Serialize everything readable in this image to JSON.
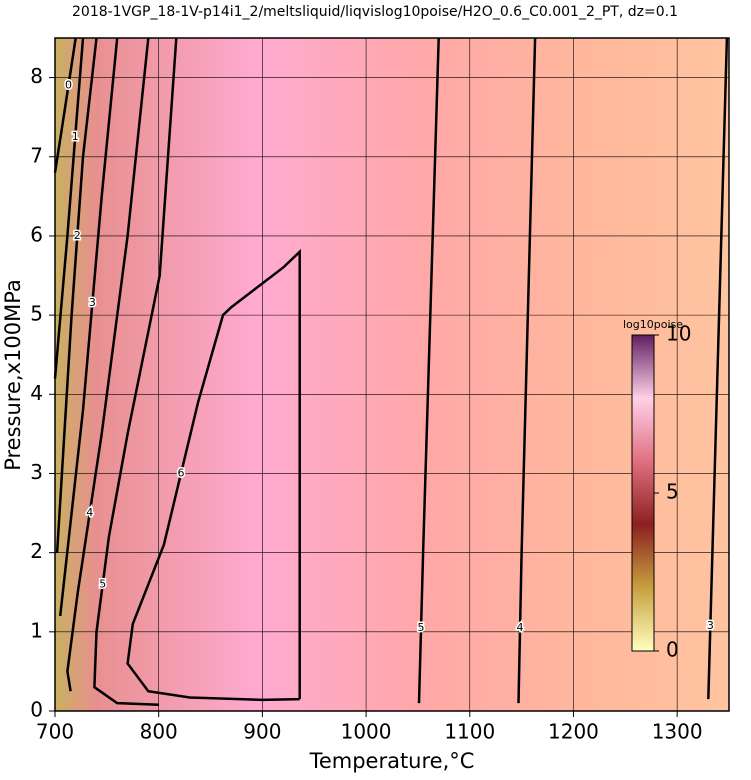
{
  "chart_data": {
    "type": "contour",
    "title": "2018-1VGP_18-1V-p14i1_2/meltsliquid/liqvislog10poise/H2O_0.6_C0.001_2_PT, dz=0.1",
    "x_label": "Temperature,°C",
    "y_label": "Pressure,x100MPa",
    "xlim": [
      700,
      1350
    ],
    "ylim": [
      0,
      8.5
    ],
    "xticks": [
      700,
      800,
      900,
      1000,
      1100,
      1200,
      1300
    ],
    "yticks": [
      0,
      1,
      2,
      3,
      4,
      5,
      6,
      7,
      8
    ],
    "grid": true,
    "line_color": "#000000",
    "contours": [
      {
        "level": 0,
        "x": [
          720,
          706,
          700
        ],
        "y": [
          8.5,
          7.3,
          6.8
        ]
      },
      {
        "level": 1,
        "x": [
          727,
          712,
          700
        ],
        "y": [
          8.5,
          6.0,
          4.2
        ]
      },
      {
        "level": 2,
        "x": [
          740,
          727,
          716,
          702
        ],
        "y": [
          8.5,
          7.0,
          5.0,
          2.0
        ]
      },
      {
        "level": 3,
        "x": [
          760,
          745,
          727,
          705
        ],
        "y": [
          8.5,
          6.5,
          3.8,
          1.2
        ]
      },
      {
        "level": 4,
        "x": [
          790,
          770,
          745,
          722,
          712,
          715
        ],
        "y": [
          8.5,
          6.0,
          3.5,
          1.5,
          0.5,
          0.25
        ]
      },
      {
        "level": 5,
        "x": [
          817,
          801,
          770,
          752,
          740,
          738,
          760,
          800
        ],
        "y": [
          8.5,
          5.5,
          3.5,
          2.2,
          1.0,
          0.3,
          0.1,
          0.08
        ]
      },
      {
        "level": 6,
        "x": [
          936,
          936,
          920,
          870,
          862,
          838,
          805,
          775,
          770,
          790,
          830,
          900,
          936
        ],
        "y": [
          0.15,
          5.8,
          5.6,
          5.1,
          5.0,
          3.9,
          2.1,
          1.1,
          0.6,
          0.25,
          0.17,
          0.14,
          0.15
        ]
      },
      {
        "level": 5,
        "x": [
          1051,
          1055,
          1070
        ],
        "y": [
          0.1,
          2.0,
          8.5
        ]
      },
      {
        "level": 4,
        "x": [
          1147,
          1150,
          1163
        ],
        "y": [
          0.1,
          2.0,
          8.5
        ]
      },
      {
        "level": 3,
        "x": [
          1330,
          1334,
          1348
        ],
        "y": [
          0.15,
          2.0,
          8.5
        ]
      }
    ],
    "colorbar": {
      "label": "log10poise",
      "lim": [
        0,
        10
      ],
      "ticks": [
        0,
        5,
        10
      ],
      "colors": [
        "#ffffc0",
        "#c8a040",
        "#8c2020",
        "#e07080",
        "#ffd0e8",
        "#602060"
      ]
    }
  }
}
